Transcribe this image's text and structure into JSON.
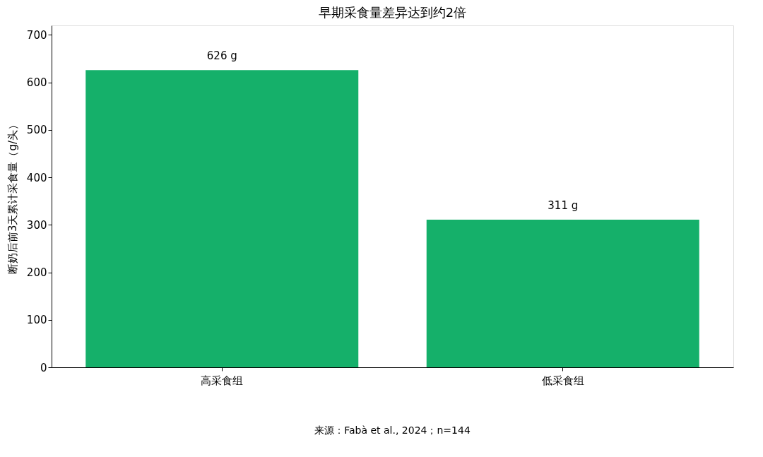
{
  "chart_data": {
    "type": "bar",
    "title": "早期采食量差异达到约2倍",
    "ylabel": "断奶后前3天累计采食量（g/头）",
    "categories": [
      "高采食组",
      "低采食组"
    ],
    "values": [
      626,
      311
    ],
    "value_labels": [
      "626 g",
      "311 g"
    ],
    "color": "#15b06a",
    "ylim": [
      0,
      720
    ],
    "yticks": [
      0,
      100,
      200,
      300,
      400,
      500,
      600,
      700
    ],
    "grid": false,
    "annotations": [
      "来源：Fabà et al., 2024；n=144"
    ]
  }
}
